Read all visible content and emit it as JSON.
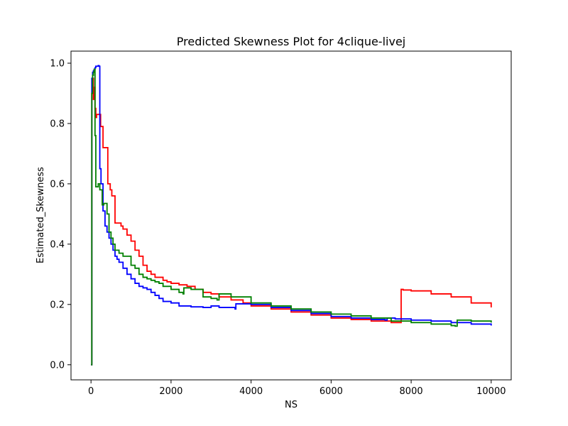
{
  "chart_data": {
    "type": "line",
    "title": "Predicted Skewness Plot for 4clique-livej",
    "xlabel": "NS",
    "ylabel": "Estimated_Skewness",
    "xlim": [
      -500,
      10500
    ],
    "ylim": [
      -0.05,
      1.04
    ],
    "x_ticks": [
      0,
      2000,
      4000,
      6000,
      8000,
      10000
    ],
    "y_ticks": [
      0.0,
      0.2,
      0.4,
      0.6,
      0.8,
      1.0
    ],
    "x_tick_labels": [
      "0",
      "2000",
      "4000",
      "6000",
      "8000",
      "10000"
    ],
    "y_tick_labels": [
      "0.0",
      "0.2",
      "0.4",
      "0.6",
      "0.8",
      "1.0"
    ],
    "grid": false,
    "series": [
      {
        "color": "#ff0000",
        "x": [
          0,
          20,
          40,
          60,
          80,
          100,
          120,
          140,
          180,
          200,
          240,
          300,
          350,
          420,
          480,
          520,
          600,
          700,
          750,
          800,
          900,
          1000,
          1100,
          1200,
          1300,
          1400,
          1500,
          1600,
          1700,
          1800,
          1900,
          2000,
          2200,
          2400,
          2600,
          2800,
          3000,
          3200,
          3500,
          3800,
          4000,
          4500,
          5000,
          5500,
          6000,
          6500,
          7000,
          7500,
          7740,
          7750,
          7800,
          8000,
          8500,
          9000,
          9500,
          10000
        ],
        "y": [
          0.0,
          0.9,
          0.95,
          0.88,
          0.92,
          0.85,
          0.82,
          0.83,
          0.83,
          0.83,
          0.79,
          0.72,
          0.72,
          0.6,
          0.58,
          0.56,
          0.47,
          0.47,
          0.46,
          0.45,
          0.43,
          0.41,
          0.38,
          0.36,
          0.33,
          0.31,
          0.3,
          0.29,
          0.29,
          0.28,
          0.275,
          0.27,
          0.265,
          0.26,
          0.25,
          0.24,
          0.235,
          0.225,
          0.215,
          0.205,
          0.195,
          0.185,
          0.175,
          0.165,
          0.155,
          0.15,
          0.145,
          0.14,
          0.14,
          0.25,
          0.248,
          0.245,
          0.235,
          0.225,
          0.205,
          0.19
        ]
      },
      {
        "color": "#0000ff",
        "x": [
          0,
          20,
          40,
          60,
          80,
          100,
          120,
          140,
          160,
          180,
          200,
          220,
          250,
          300,
          350,
          400,
          450,
          500,
          550,
          600,
          650,
          700,
          800,
          900,
          1000,
          1100,
          1200,
          1300,
          1400,
          1500,
          1600,
          1700,
          1800,
          2000,
          2200,
          2500,
          2800,
          3000,
          3200,
          3600,
          3620,
          4000,
          4500,
          5000,
          5500,
          6000,
          6500,
          7000,
          7350,
          7400,
          7600,
          8000,
          8500,
          9000,
          9500,
          10000
        ],
        "y": [
          0.0,
          0.95,
          0.97,
          0.975,
          0.98,
          0.985,
          0.99,
          0.99,
          0.99,
          0.992,
          0.99,
          0.65,
          0.6,
          0.51,
          0.46,
          0.44,
          0.42,
          0.4,
          0.38,
          0.36,
          0.35,
          0.34,
          0.32,
          0.3,
          0.285,
          0.27,
          0.26,
          0.255,
          0.25,
          0.24,
          0.23,
          0.22,
          0.21,
          0.205,
          0.195,
          0.192,
          0.19,
          0.195,
          0.19,
          0.185,
          0.202,
          0.2,
          0.19,
          0.18,
          0.17,
          0.16,
          0.155,
          0.15,
          0.148,
          0.155,
          0.152,
          0.148,
          0.145,
          0.14,
          0.135,
          0.13
        ]
      },
      {
        "color": "#008000",
        "x": [
          0,
          20,
          40,
          60,
          80,
          100,
          120,
          150,
          180,
          220,
          280,
          320,
          400,
          450,
          500,
          550,
          600,
          700,
          800,
          900,
          1000,
          1100,
          1200,
          1300,
          1400,
          1500,
          1600,
          1700,
          1800,
          2000,
          2200,
          2300,
          2320,
          2500,
          2800,
          3000,
          3150,
          3200,
          3500,
          4000,
          4500,
          5000,
          5500,
          6000,
          6500,
          7000,
          7500,
          8000,
          8500,
          9000,
          9100,
          9150,
          9500,
          10000
        ],
        "y": [
          0.0,
          0.9,
          0.96,
          0.97,
          0.98,
          0.76,
          0.59,
          0.59,
          0.6,
          0.58,
          0.53,
          0.535,
          0.5,
          0.44,
          0.42,
          0.4,
          0.38,
          0.37,
          0.36,
          0.36,
          0.33,
          0.32,
          0.3,
          0.29,
          0.285,
          0.28,
          0.275,
          0.27,
          0.26,
          0.25,
          0.24,
          0.235,
          0.255,
          0.25,
          0.225,
          0.22,
          0.215,
          0.235,
          0.225,
          0.205,
          0.195,
          0.185,
          0.175,
          0.168,
          0.162,
          0.155,
          0.145,
          0.14,
          0.135,
          0.13,
          0.128,
          0.148,
          0.145,
          0.14
        ]
      }
    ]
  }
}
